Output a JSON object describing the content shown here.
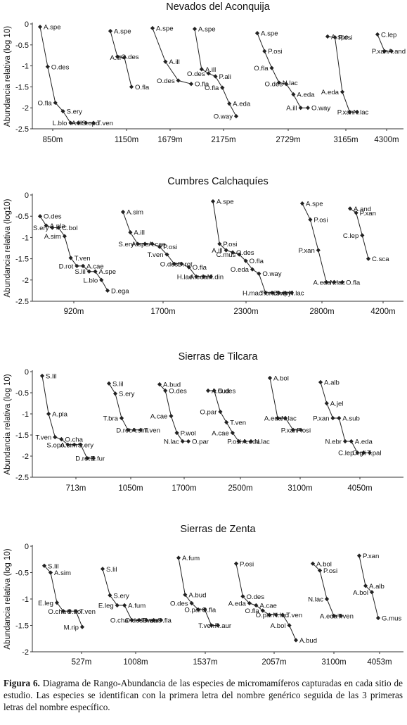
{
  "caption": {
    "label": "Figura 6.",
    "text": "Diagrama de Rango-Abundancia de las especies de micromamíferos capturadas en cada sitio de estudio. Las especies se identifican con la primera letra del nombre genérico seguida de las 3 primeras letras del nombre específico."
  },
  "chart_data": [
    {
      "type": "line",
      "title": "Nevados del Aconquija",
      "ylabel": "Abundancia relativa (log 10)",
      "ylim": [
        -2.5,
        0
      ],
      "yticks": [
        "0",
        "-0.5",
        "-1",
        "-1.5",
        "-2",
        "-2.5"
      ],
      "categories": [
        "850m",
        "1150m",
        "1679m",
        "2175m",
        "2729m",
        "3165m",
        "4300m"
      ],
      "series": [
        {
          "site": "850m",
          "points": [
            [
              "A.spe",
              -0.07
            ],
            [
              "O.des",
              -1.02
            ],
            [
              "O.fla",
              -1.88
            ],
            [
              "S.ery",
              -2.08
            ],
            [
              "L.blo",
              -2.36
            ],
            [
              "S.opo",
              -2.36
            ],
            [
              "A.ill",
              -2.36
            ],
            [
              "T.ven",
              -2.36
            ]
          ]
        },
        {
          "site": "1150m",
          "points": [
            [
              "A.spe",
              -0.17
            ],
            [
              "O.des",
              -0.78
            ],
            [
              "A.ill",
              -0.8
            ],
            [
              "O.fla",
              -1.5
            ]
          ]
        },
        {
          "site": "1679m",
          "points": [
            [
              "A.spe",
              -0.1
            ],
            [
              "A.ill",
              -0.9
            ],
            [
              "O.des",
              -1.35
            ],
            [
              "O.fla",
              -1.43
            ]
          ]
        },
        {
          "site": "2175m",
          "points": [
            [
              "A.spe",
              -0.12
            ],
            [
              "A.ill",
              -1.08
            ],
            [
              "O.des",
              -1.18
            ],
            [
              "P.ali",
              -1.25
            ],
            [
              "O.fla",
              -1.52
            ],
            [
              "A.eda",
              -1.9
            ],
            [
              "O.way",
              -2.2
            ]
          ]
        },
        {
          "site": "2729m",
          "points": [
            [
              "A.spe",
              -0.22
            ],
            [
              "P.osi",
              -0.65
            ],
            [
              "O.fla",
              -1.05
            ],
            [
              "N.lac",
              -1.4
            ],
            [
              "O.des",
              -1.43
            ],
            [
              "A.eda",
              -1.68
            ],
            [
              "A.ill",
              -2.0
            ],
            [
              "O.way",
              -2.0
            ]
          ]
        },
        {
          "site": "3165m",
          "points": [
            [
              "A.spe",
              -0.3
            ],
            [
              "P.osi",
              -0.32
            ],
            [
              "A.eda",
              -1.62
            ],
            [
              "N.lac",
              -2.1
            ],
            [
              "P.xan",
              -2.1
            ]
          ]
        },
        {
          "site": "4300m",
          "points": [
            [
              "C.lep",
              -0.25
            ],
            [
              "A.and",
              -0.65
            ],
            [
              "P.xan",
              -0.65
            ]
          ]
        }
      ]
    },
    {
      "type": "line",
      "title": "Cumbres Calchaquíes",
      "ylabel": "Abundancia relativa (log10)",
      "ylim": [
        -2.5,
        0
      ],
      "yticks": [
        "0",
        "-0.5",
        "-1",
        "-1.5",
        "-2",
        "-2.5"
      ],
      "categories": [
        "920m",
        "1700m",
        "2300m",
        "2800m",
        "4200m"
      ],
      "series": [
        {
          "site": "920m",
          "points": [
            [
              "O.des",
              -0.5
            ],
            [
              "A.pla",
              -0.72
            ],
            [
              "S.ery",
              -0.77
            ],
            [
              "C.bol",
              -0.77
            ],
            [
              "A.sim",
              -0.97
            ],
            [
              "T.ven",
              -1.48
            ],
            [
              "D.rot",
              -1.67
            ],
            [
              "A.cae",
              -1.67
            ],
            [
              "S.lil",
              -1.8
            ],
            [
              "A.spe",
              -1.8
            ],
            [
              "L.blo",
              -2.0
            ],
            [
              "D.ega",
              -2.25
            ]
          ]
        },
        {
          "site": "1700m",
          "points": [
            [
              "A.sim",
              -0.4
            ],
            [
              "A.ill",
              -0.88
            ],
            [
              "S.ery",
              -1.15
            ],
            [
              "A.cae",
              -1.15
            ],
            [
              "A.spe",
              -1.15
            ],
            [
              "P.osi",
              -1.22
            ],
            [
              "T.ven",
              -1.4
            ],
            [
              "D.rot",
              -1.62
            ],
            [
              "O.des",
              -1.62
            ],
            [
              "O.fla",
              -1.7
            ],
            [
              "H.lae",
              -1.92
            ],
            [
              "M.din",
              -1.92
            ],
            [
              "A.eda",
              -1.92
            ]
          ]
        },
        {
          "site": "2300m",
          "points": [
            [
              "A.spe",
              -0.15
            ],
            [
              "P.osi",
              -1.15
            ],
            [
              "A.ill",
              -1.3
            ],
            [
              "O.des",
              -1.35
            ],
            [
              "C.mus",
              -1.4
            ],
            [
              "O.fla",
              -1.55
            ],
            [
              "O.eda",
              -1.75
            ],
            [
              "O.way",
              -1.85
            ],
            [
              "H.mac",
              -2.3
            ],
            [
              "S.ery",
              -2.3
            ],
            [
              "T.bra",
              -2.3
            ],
            [
              "N.lac",
              -2.3
            ],
            [
              "C.vip",
              -2.3
            ]
          ]
        },
        {
          "site": "2800m",
          "points": [
            [
              "A.spe",
              -0.2
            ],
            [
              "P.osi",
              -0.58
            ],
            [
              "P.xan",
              -1.3
            ],
            [
              "N.lac",
              -2.05
            ],
            [
              "A.eda",
              -2.05
            ],
            [
              "O.fla",
              -2.05
            ]
          ]
        },
        {
          "site": "4200m",
          "points": [
            [
              "A.and",
              -0.32
            ],
            [
              "P.xan",
              -0.42
            ],
            [
              "C.lep",
              -0.95
            ],
            [
              "C.sca",
              -1.5
            ]
          ]
        }
      ]
    },
    {
      "type": "line",
      "title": "Sierras de Tilcara",
      "ylabel": "Abundancia relativa (log 10)",
      "ylim": [
        -2.5,
        0
      ],
      "yticks": [
        "0",
        "-0.5",
        "-1",
        "-1.5",
        "-2",
        "-2.5"
      ],
      "categories": [
        "713m",
        "1050m",
        "1700m",
        "2500m",
        "3100m",
        "4050m"
      ],
      "series": [
        {
          "site": "713m",
          "points": [
            [
              "S.lil",
              -0.1
            ],
            [
              "A.pla",
              -1.0
            ],
            [
              "T.ven",
              -1.55
            ],
            [
              "O.cha",
              -1.6
            ],
            [
              "S.opo",
              -1.73
            ],
            [
              "S.ery",
              -1.73
            ],
            [
              "A.sim",
              -1.73
            ],
            [
              "E.fur",
              -2.05
            ],
            [
              "D.rot",
              -2.05
            ]
          ]
        },
        {
          "site": "1050m",
          "points": [
            [
              "S.lil",
              -0.28
            ],
            [
              "S.ery",
              -0.52
            ],
            [
              "T.bra",
              -1.1
            ],
            [
              "A.sim",
              -1.38
            ],
            [
              "D.rot",
              -1.38
            ],
            [
              "T.ven",
              -1.38
            ]
          ]
        },
        {
          "site": "1700m",
          "points": [
            [
              "A.bud",
              -0.3
            ],
            [
              "O.des",
              -0.45
            ],
            [
              "A.cae",
              -1.05
            ],
            [
              "P.wol",
              -1.45
            ],
            [
              "N.lac",
              -1.65
            ],
            [
              "O.par",
              -1.65
            ]
          ]
        },
        {
          "site": "2500m",
          "points": [
            [
              "A.bud",
              -0.45
            ],
            [
              "O.des",
              -0.45
            ],
            [
              "O.par",
              -0.95
            ],
            [
              "T.ven",
              -1.2
            ],
            [
              "A.cae",
              -1.45
            ],
            [
              "A.eda",
              -1.65
            ],
            [
              "P.osi",
              -1.65
            ],
            [
              "N.lac",
              -1.65
            ]
          ]
        },
        {
          "site": "3100m",
          "points": [
            [
              "A.bol",
              -0.15
            ],
            [
              "N.lac",
              -1.1
            ],
            [
              "A.eda",
              -1.1
            ],
            [
              "P.osi",
              -1.38
            ],
            [
              "P.xan",
              -1.38
            ]
          ]
        },
        {
          "site": "4050m",
          "points": [
            [
              "A.alb",
              -0.25
            ],
            [
              "A.jel",
              -0.75
            ],
            [
              "P.xan",
              -1.1
            ],
            [
              "A.sub",
              -1.1
            ],
            [
              "N.ebr",
              -1.65
            ],
            [
              "A.eda",
              -1.65
            ],
            [
              "C.lep",
              -1.92
            ],
            [
              "T.pal",
              -1.92
            ],
            [
              "O.gli",
              -1.92
            ]
          ]
        }
      ]
    },
    {
      "type": "line",
      "title": "Sierras de Zenta",
      "ylabel": "Abundancia relativa (log 10)",
      "ylim": [
        -2,
        0
      ],
      "yticks": [
        "0",
        "-0.5",
        "-1",
        "-1.5",
        "-2"
      ],
      "categories": [
        "527m",
        "1008m",
        "1537m",
        "2057m",
        "3100m",
        "4053m"
      ],
      "series": [
        {
          "site": "527m",
          "points": [
            [
              "S.lil",
              -0.37
            ],
            [
              "A.sim",
              -0.5
            ],
            [
              "E.leg",
              -1.07
            ],
            [
              "C.bol",
              -1.23
            ],
            [
              "O.cha",
              -1.23
            ],
            [
              "T.ven",
              -1.23
            ],
            [
              "M.rip",
              -1.53
            ]
          ]
        },
        {
          "site": "1008m",
          "points": [
            [
              "S.lil",
              -0.43
            ],
            [
              "S.ery",
              -0.93
            ],
            [
              "E.leg",
              -1.12
            ],
            [
              "A.fum",
              -1.12
            ],
            [
              "O.cha",
              -1.4
            ],
            [
              "C.aur",
              -1.4
            ],
            [
              "O.des",
              -1.4
            ],
            [
              "O.fla",
              -1.4
            ],
            [
              "T.ven",
              -1.4
            ]
          ]
        },
        {
          "site": "1537m",
          "points": [
            [
              "A.fum",
              -0.22
            ],
            [
              "A.bud",
              -0.92
            ],
            [
              "O.des",
              -1.08
            ],
            [
              "O.fla",
              -1.2
            ],
            [
              "O.par",
              -1.2
            ],
            [
              "R.aur",
              -1.5
            ],
            [
              "T.ven",
              -1.5
            ]
          ]
        },
        {
          "site": "2057m",
          "points": [
            [
              "P.osi",
              -0.33
            ],
            [
              "O.des",
              -0.95
            ],
            [
              "A.eda",
              -1.08
            ],
            [
              "A.cae",
              -1.12
            ],
            [
              "O.fla",
              -1.22
            ],
            [
              "N.lac",
              -1.3
            ],
            [
              "O.par",
              -1.3
            ],
            [
              "T.ven",
              -1.3
            ],
            [
              "A.bol",
              -1.5
            ],
            [
              "A.bud",
              -1.78
            ]
          ]
        },
        {
          "site": "3100m",
          "points": [
            [
              "A.bol",
              -0.33
            ],
            [
              "P.osi",
              -0.46
            ],
            [
              "N.lac",
              -1.0
            ],
            [
              "T.ven",
              -1.32
            ],
            [
              "A.eda",
              -1.32
            ]
          ]
        },
        {
          "site": "4053m",
          "points": [
            [
              "P.xan",
              -0.18
            ],
            [
              "A.alb",
              -0.75
            ],
            [
              "A.bol",
              -0.87
            ],
            [
              "G.mus",
              -1.36
            ]
          ]
        }
      ]
    }
  ]
}
